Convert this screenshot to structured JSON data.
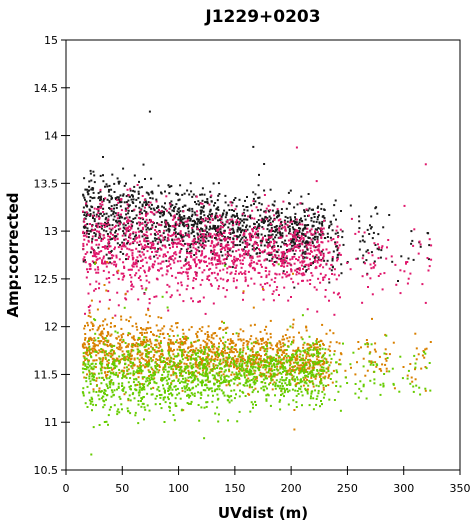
{
  "chart_data": {
    "type": "scatter",
    "title": "J1229+0203",
    "xlabel": "UVdist (m)",
    "ylabel": "Amp:corrected",
    "xlim": [
      0,
      350
    ],
    "ylim": [
      10.5,
      15
    ],
    "x_ticks": [
      "0",
      "50",
      "100",
      "150",
      "200",
      "250",
      "300",
      "350"
    ],
    "y_ticks": [
      "10.5",
      "11",
      "11.5",
      "12",
      "12.5",
      "13",
      "13.5",
      "14",
      "14.5",
      "15"
    ],
    "grid": false,
    "legend": "none",
    "series": [
      {
        "color": "#1a1a1a",
        "uvdist_range": [
          15,
          325
        ],
        "amp_center": 13.1,
        "amp_spread": 0.18,
        "trend_per_100m": -0.12
      },
      {
        "color": "#e0186c",
        "uvdist_range": [
          15,
          325
        ],
        "amp_center": 12.8,
        "amp_spread": 0.22,
        "trend_per_100m": -0.05
      },
      {
        "color": "#d98000",
        "uvdist_range": [
          15,
          325
        ],
        "amp_center": 11.72,
        "amp_spread": 0.14,
        "trend_per_100m": -0.05
      },
      {
        "color": "#66cc00",
        "uvdist_range": [
          15,
          325
        ],
        "amp_center": 11.5,
        "amp_spread": 0.17,
        "trend_per_100m": 0.02
      }
    ]
  }
}
